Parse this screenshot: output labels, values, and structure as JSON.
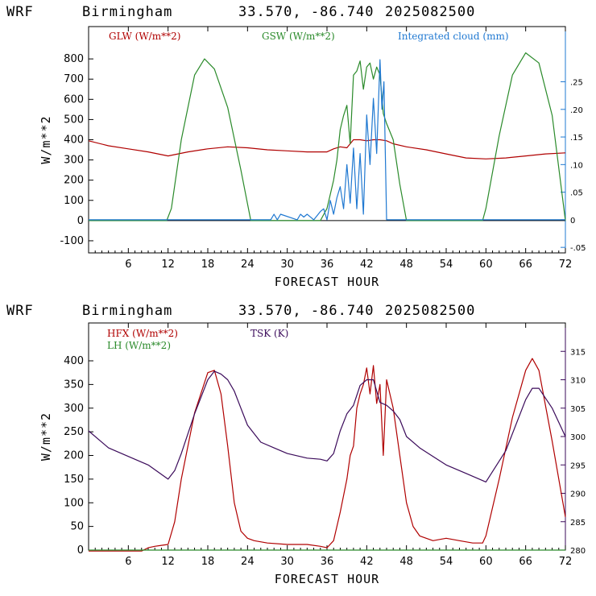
{
  "header": {
    "model": "WRF",
    "station": "Birmingham",
    "coords": "33.570, -86.740",
    "date": "2025082500"
  },
  "colors": {
    "red": "#b00000",
    "green": "#2a8a2a",
    "blue": "#1f78d1",
    "purple": "#3a0a5a"
  },
  "chart_data": [
    {
      "type": "line",
      "xlabel": "FORECAST HOUR",
      "ylabel": "W/m**2",
      "xlim": [
        0,
        72
      ],
      "ylim": [
        -160,
        960
      ],
      "xticks": [
        6,
        12,
        18,
        24,
        30,
        36,
        42,
        48,
        54,
        60,
        66,
        72
      ],
      "yticks": [
        -100,
        0,
        100,
        200,
        300,
        400,
        500,
        600,
        700,
        800
      ],
      "right_axis": {
        "ylim": [
          -0.06,
          0.35
        ],
        "ticks": [
          -0.05,
          0,
          0.05,
          0.1,
          0.15,
          0.2,
          0.25
        ],
        "labels": [
          "-.05",
          "0",
          ".05",
          ".10",
          ".15",
          ".20",
          ".25"
        ]
      },
      "series": [
        {
          "name": "GLW (W/m**2)",
          "color": "#b00000",
          "axis": "left",
          "x": [
            0,
            3,
            6,
            9,
            12,
            15,
            18,
            21,
            24,
            27,
            30,
            33,
            36,
            37,
            38,
            39,
            40,
            41,
            42,
            43,
            44,
            45,
            46,
            48,
            51,
            54,
            57,
            60,
            63,
            66,
            69,
            72
          ],
          "y": [
            395,
            370,
            355,
            340,
            320,
            340,
            355,
            365,
            360,
            350,
            345,
            340,
            340,
            355,
            365,
            360,
            400,
            400,
            395,
            400,
            400,
            395,
            380,
            365,
            350,
            330,
            310,
            305,
            310,
            320,
            330,
            335
          ]
        },
        {
          "name": "GSW (W/m**2)",
          "color": "#2a8a2a",
          "axis": "left",
          "x": [
            0,
            11.8,
            12.5,
            14,
            16,
            17.5,
            19,
            21,
            23,
            24.5,
            25,
            35,
            36,
            37,
            37.5,
            38,
            38.5,
            39,
            39.5,
            40,
            40.5,
            41,
            41.5,
            42,
            42.5,
            43,
            43.5,
            44,
            44.5,
            45,
            46,
            47,
            48,
            59.5,
            60,
            62,
            64,
            66,
            68,
            70,
            72
          ],
          "y": [
            0,
            0,
            60,
            400,
            720,
            800,
            750,
            560,
            250,
            0,
            0,
            0,
            60,
            200,
            300,
            450,
            520,
            570,
            380,
            720,
            740,
            790,
            650,
            760,
            780,
            700,
            760,
            720,
            530,
            480,
            400,
            180,
            0,
            0,
            60,
            420,
            720,
            830,
            780,
            520,
            0
          ]
        },
        {
          "name": "Integrated cloud (mm)",
          "color": "#1f78d1",
          "axis": "right",
          "x": [
            0,
            27.5,
            28,
            28.5,
            29,
            31.5,
            32,
            32.5,
            33,
            34,
            35,
            35.5,
            36,
            36.5,
            37,
            37.5,
            38,
            38.5,
            39,
            39.5,
            40,
            40.5,
            41,
            41.5,
            42,
            42.5,
            43,
            43.5,
            44,
            44.3,
            44.6,
            45,
            72
          ],
          "y": [
            0,
            0,
            0.01,
            0,
            0.01,
            0,
            0.01,
            0.005,
            0.01,
            0,
            0.015,
            0.02,
            0,
            0.035,
            0.01,
            0.04,
            0.06,
            0.02,
            0.1,
            0.03,
            0.13,
            0.02,
            0.12,
            0.01,
            0.19,
            0.1,
            0.22,
            0.12,
            0.29,
            0.2,
            0.25,
            0,
            0
          ]
        }
      ]
    },
    {
      "type": "line",
      "xlabel": "FORECAST HOUR",
      "ylabel": "W/m**2",
      "xlim": [
        0,
        72
      ],
      "ylim": [
        0,
        480
      ],
      "xticks": [
        6,
        12,
        18,
        24,
        30,
        36,
        42,
        48,
        54,
        60,
        66,
        72
      ],
      "yticks": [
        0,
        50,
        100,
        150,
        200,
        250,
        300,
        350,
        400
      ],
      "right_axis": {
        "ylim": [
          280,
          320
        ],
        "ticks": [
          280,
          285,
          290,
          295,
          300,
          305,
          310,
          315
        ],
        "labels": [
          "280",
          "285",
          "290",
          "295",
          "300",
          "305",
          "310",
          "315"
        ]
      },
      "series": [
        {
          "name": "HFX (W/m**2)",
          "color": "#b00000",
          "axis": "left",
          "x": [
            0,
            6,
            8,
            9,
            10,
            11,
            12,
            13,
            14,
            16,
            18,
            19,
            20,
            21,
            22,
            23,
            24,
            25,
            27,
            30,
            33,
            35,
            36,
            37,
            38,
            39,
            39.5,
            40,
            40.5,
            41,
            41.5,
            42,
            42.5,
            43,
            43.5,
            44,
            44.5,
            45,
            46,
            47,
            48,
            49,
            50,
            52,
            54,
            56,
            58,
            59.5,
            60,
            62,
            64,
            66,
            67,
            68,
            70,
            72
          ],
          "y": [
            -2,
            -2,
            -2,
            5,
            8,
            10,
            12,
            60,
            150,
            290,
            375,
            380,
            330,
            220,
            100,
            40,
            25,
            20,
            15,
            12,
            12,
            8,
            5,
            20,
            80,
            150,
            200,
            220,
            300,
            330,
            350,
            385,
            330,
            390,
            310,
            350,
            200,
            360,
            300,
            200,
            100,
            50,
            30,
            20,
            25,
            20,
            15,
            15,
            30,
            150,
            280,
            380,
            405,
            380,
            230,
            70
          ]
        },
        {
          "name": "LH (W/m**2)",
          "color": "#2a8a2a",
          "axis": "left",
          "x": [
            0,
            72
          ],
          "y": [
            0,
            0
          ]
        },
        {
          "name": "TSK (K)",
          "color": "#3a0a5a",
          "axis": "right",
          "x": [
            0,
            3,
            6,
            9,
            12,
            13,
            14,
            16,
            18,
            19,
            20,
            21,
            22,
            23,
            24,
            26,
            28,
            30,
            33,
            35,
            36,
            37,
            38,
            39,
            40,
            41,
            42,
            43,
            44,
            45,
            46,
            47,
            48,
            50,
            52,
            54,
            57,
            60,
            63,
            66,
            67,
            68,
            70,
            72
          ],
          "y": [
            301,
            298,
            296.5,
            295,
            292.5,
            294,
            297,
            304,
            310,
            311.5,
            311,
            310,
            308,
            305,
            302,
            299,
            298,
            297,
            296.2,
            296,
            295.7,
            297,
            301,
            304,
            305.5,
            309,
            310,
            310,
            306,
            305.5,
            304.5,
            303,
            300,
            298,
            296.5,
            295,
            293.5,
            292,
            297.5,
            306.5,
            308.5,
            308.5,
            305,
            300
          ]
        }
      ]
    }
  ]
}
